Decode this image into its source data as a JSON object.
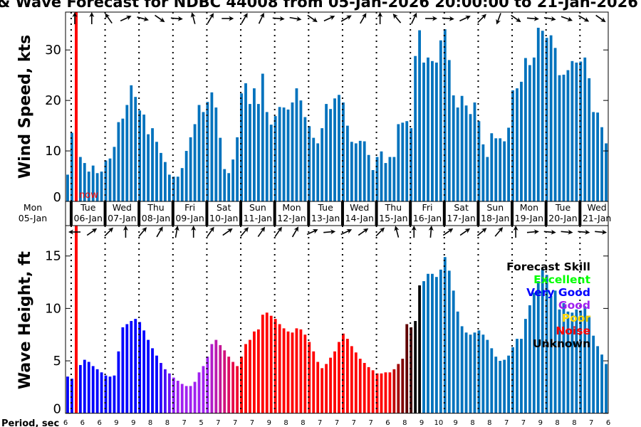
{
  "title": "& Wave Forecast for NDBC 44008 from 05-Jan-2026 20:00:00 to 21-Jan-2026",
  "now_label": "now",
  "period_label": "Period, sec",
  "colors": {
    "wind_bar": "#0072BD",
    "now_line": "#FF0000"
  },
  "chart_data": [
    {
      "type": "bar",
      "name": "wind",
      "ylabel": "Wind Speed, kts",
      "ylim": [
        0,
        37.5
      ],
      "yticks": [
        0,
        10,
        20,
        30
      ],
      "interval_hours": 3,
      "values": [
        5.3,
        13.6,
        17.0,
        8.8,
        7.6,
        5.9,
        7.1,
        5.6,
        5.9,
        8.1,
        8.5,
        10.8,
        15.7,
        16.4,
        19.1,
        23.0,
        20.7,
        18.0,
        17.2,
        13.3,
        14.5,
        11.8,
        9.6,
        7.8,
        5.3,
        4.9,
        4.9,
        6.6,
        10.0,
        12.7,
        15.3,
        19.1,
        17.7,
        19.7,
        21.6,
        18.6,
        12.6,
        6.4,
        5.6,
        8.3,
        12.7,
        21.4,
        23.4,
        19.3,
        22.4,
        19.3,
        25.3,
        17.7,
        15.2,
        16.9,
        18.7,
        18.6,
        18.2,
        19.6,
        22.4,
        20.0,
        16.7,
        14.9,
        12.6,
        11.5,
        14.5,
        19.3,
        18.3,
        20.4,
        21.1,
        19.6,
        15.0,
        11.8,
        11.5,
        12.0,
        11.9,
        9.2,
        6.2,
        8.8,
        9.9,
        7.6,
        8.8,
        8.8,
        15.3,
        15.6,
        15.9,
        14.5,
        28.8,
        33.9,
        27.5,
        28.5,
        27.8,
        27.5,
        31.9,
        34.1,
        28.0,
        21.0,
        18.6,
        20.9,
        19.0,
        17.3,
        19.6,
        15.9,
        11.3,
        8.8,
        13.5,
        12.5,
        12.5,
        11.9,
        14.6,
        22.0,
        22.4,
        23.7,
        28.4,
        27.0,
        28.5,
        34.4,
        33.8,
        32.4,
        32.9,
        30.4,
        25.0,
        25.1,
        26.0,
        27.8,
        27.5,
        27.7,
        28.5,
        24.4,
        17.7,
        17.6,
        14.7,
        11.5
      ],
      "direction_deg": [
        0,
        0,
        -35,
        65,
        105,
        125,
        95,
        -15,
        30,
        90,
        30,
        25,
        95,
        100,
        125,
        65,
        60,
        30,
        0,
        -40,
        25,
        90,
        95,
        65,
        45,
        200,
        125,
        95,
        100,
        110,
        120,
        125
      ]
    },
    {
      "type": "bar",
      "name": "wave",
      "ylabel": "Wave Height, ft",
      "ylim": [
        0,
        17.9
      ],
      "yticks": [
        0,
        5,
        10,
        15
      ],
      "interval_hours": 3,
      "values": [
        3.5,
        3.3,
        3.8,
        4.6,
        5.1,
        4.9,
        4.5,
        4.2,
        3.9,
        3.6,
        3.5,
        3.6,
        5.9,
        8.2,
        8.5,
        8.8,
        9.0,
        8.7,
        7.9,
        7.0,
        6.2,
        5.5,
        4.8,
        4.2,
        3.8,
        3.4,
        3.1,
        2.8,
        2.6,
        2.6,
        3.0,
        3.9,
        4.5,
        5.4,
        6.6,
        7.0,
        6.5,
        6.0,
        5.4,
        4.9,
        4.5,
        5.4,
        6.6,
        7.0,
        7.8,
        8.0,
        9.4,
        9.6,
        9.3,
        9.0,
        8.5,
        8.1,
        7.8,
        7.7,
        8.1,
        8.0,
        7.5,
        6.8,
        5.9,
        4.9,
        4.3,
        4.7,
        5.3,
        5.9,
        6.8,
        7.6,
        7.1,
        6.4,
        5.8,
        5.2,
        4.8,
        4.4,
        4.1,
        3.8,
        3.8,
        3.9,
        3.9,
        4.2,
        4.7,
        5.2,
        8.5,
        8.2,
        8.8,
        12.2,
        12.6,
        13.3,
        13.3,
        13.0,
        13.7,
        14.9,
        13.6,
        11.7,
        9.7,
        8.3,
        7.7,
        7.5,
        7.7,
        7.9,
        7.5,
        7.0,
        6.2,
        5.4,
        5.0,
        5.1,
        5.5,
        6.3,
        7.1,
        7.1,
        9.0,
        10.3,
        11.5,
        12.6,
        13.8,
        13.2,
        11.2,
        11.7,
        9.9,
        10.5,
        9.7,
        9.6,
        9.9,
        9.8,
        10.2,
        9.3,
        7.4,
        6.4,
        5.6,
        4.7
      ],
      "skill_color_segments": [
        {
          "from": 0,
          "to": 21,
          "start": "#0000FF",
          "end": "#0000FF"
        },
        {
          "from": 22,
          "to": 25,
          "start": "#2A08FA",
          "end": "#8A1CF2"
        },
        {
          "from": 26,
          "to": 33,
          "start": "#A020F0",
          "end": "#A020F0"
        },
        {
          "from": 34,
          "to": 40,
          "start": "#B01CC8",
          "end": "#F00830"
        },
        {
          "from": 41,
          "to": 76,
          "start": "#FF0000",
          "end": "#FF0000"
        },
        {
          "from": 77,
          "to": 81,
          "start": "#C00000",
          "end": "#400000"
        },
        {
          "from": 82,
          "to": 83,
          "start": "#000000",
          "end": "#000000"
        },
        {
          "from": 84,
          "to": 127,
          "start": "#0072BD",
          "end": "#0072BD"
        }
      ],
      "direction_deg": [
        270,
        55,
        45,
        0,
        40,
        30,
        10,
        0,
        35,
        55,
        40,
        35,
        35,
        30,
        65,
        85,
        65,
        55,
        45,
        -15,
        0,
        5,
        55,
        55,
        50,
        40,
        0,
        85,
        95,
        95,
        95,
        95
      ],
      "period_sec": [
        6,
        6,
        6,
        9,
        9,
        8,
        8,
        7,
        5,
        7,
        7,
        7,
        9,
        8,
        8,
        7,
        7,
        7,
        7,
        6,
        8,
        9,
        10,
        9,
        8,
        8,
        7,
        7,
        9,
        8,
        8,
        7,
        6
      ]
    }
  ],
  "days": [
    {
      "dow": "Mon",
      "date": "05-Jan"
    },
    {
      "dow": "Tue",
      "date": "06-Jan"
    },
    {
      "dow": "Wed",
      "date": "07-Jan"
    },
    {
      "dow": "Thu",
      "date": "08-Jan"
    },
    {
      "dow": "Fri",
      "date": "09-Jan"
    },
    {
      "dow": "Sat",
      "date": "10-Jan"
    },
    {
      "dow": "Sun",
      "date": "11-Jan"
    },
    {
      "dow": "Mon",
      "date": "12-Jan"
    },
    {
      "dow": "Tue",
      "date": "13-Jan"
    },
    {
      "dow": "Wed",
      "date": "14-Jan"
    },
    {
      "dow": "Thu",
      "date": "15-Jan"
    },
    {
      "dow": "Fri",
      "date": "16-Jan"
    },
    {
      "dow": "Sat",
      "date": "17-Jan"
    },
    {
      "dow": "Sun",
      "date": "18-Jan"
    },
    {
      "dow": "Mon",
      "date": "19-Jan"
    },
    {
      "dow": "Tue",
      "date": "20-Jan"
    },
    {
      "dow": "Wed",
      "date": "21-Jan"
    }
  ],
  "legend": {
    "title": "Forecast Skill",
    "items": [
      {
        "label": "Excellent",
        "color": "#00FF00"
      },
      {
        "label": "Very Good",
        "color": "#0000FF"
      },
      {
        "label": "Good",
        "color": "#A020F0"
      },
      {
        "label": "Poor",
        "color": "#FFD700"
      },
      {
        "label": "Noise",
        "color": "#FF0000"
      },
      {
        "label": "Unknown",
        "color": "#000000"
      }
    ]
  }
}
